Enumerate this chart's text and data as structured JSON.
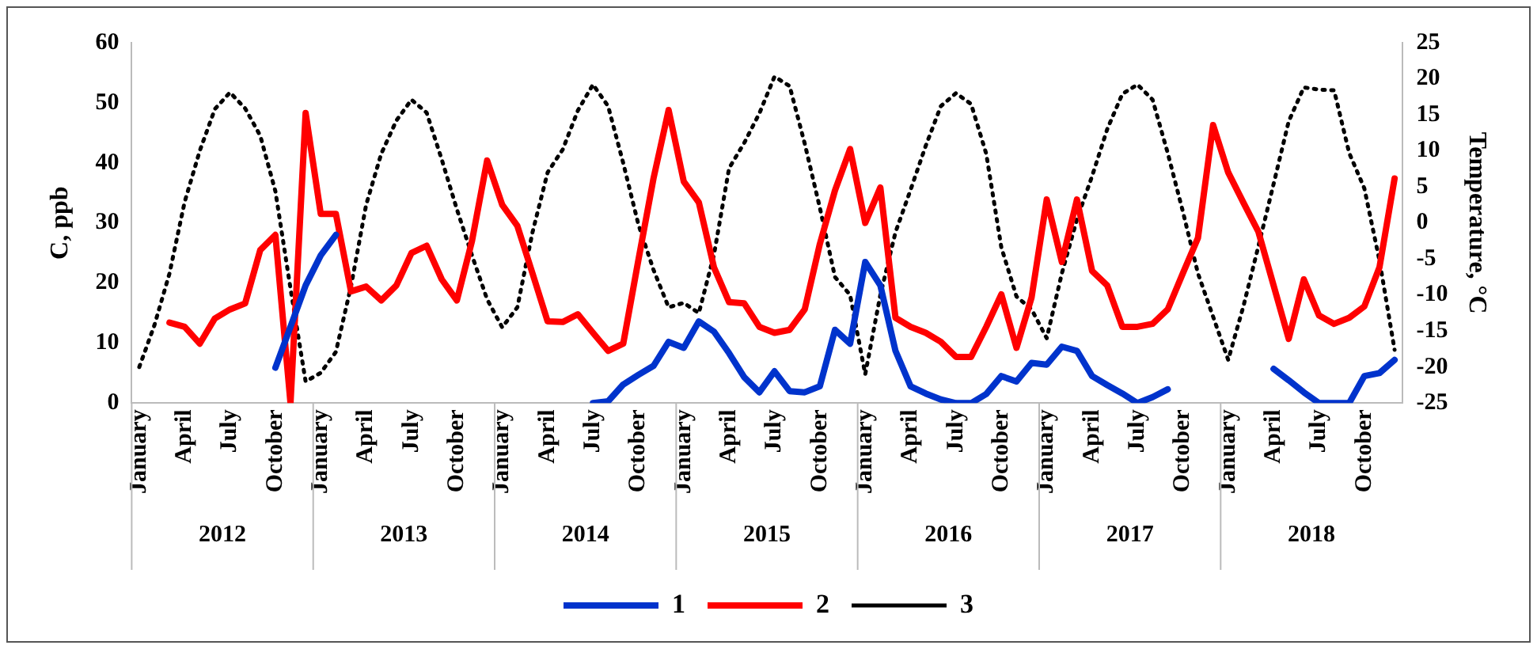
{
  "chart_data": {
    "type": "line",
    "ylabel": "C, ppb",
    "y2label": "Temperature, °C",
    "categories": [
      "January",
      null,
      null,
      "April",
      null,
      null,
      "July",
      null,
      null,
      "October",
      null,
      null,
      "January",
      null,
      null,
      "April",
      null,
      null,
      "July",
      null,
      null,
      "October",
      null,
      null,
      "January",
      null,
      null,
      "April",
      null,
      null,
      "July",
      null,
      null,
      "October",
      null,
      null,
      "January",
      null,
      null,
      "April",
      null,
      null,
      "July",
      null,
      null,
      "October",
      null,
      null,
      "January",
      null,
      null,
      "April",
      null,
      null,
      "July",
      null,
      null,
      "October",
      null,
      null,
      "January",
      null,
      null,
      "April",
      null,
      null,
      "July",
      null,
      null,
      "October",
      null,
      null,
      "January",
      null,
      null,
      "April",
      null,
      null,
      "July",
      null,
      null,
      "October",
      null,
      null
    ],
    "annotations": [
      "2012",
      "2013",
      "2014",
      "2015",
      "2016",
      "2017",
      "2018"
    ],
    "ylim": [
      0,
      60
    ],
    "yticks": [
      0,
      10,
      20,
      30,
      40,
      50,
      60
    ],
    "y2lim": [
      -25,
      25
    ],
    "y2ticks": [
      -25,
      -20,
      -15,
      -10,
      -5,
      0,
      5,
      10,
      15,
      20,
      25
    ],
    "legend": "bottom",
    "marker": "none",
    "series": [
      {
        "name": "1",
        "type": "line",
        "color": "#0033cc",
        "line_style": "solid",
        "values": [
          null,
          null,
          null,
          null,
          null,
          null,
          null,
          null,
          null,
          5.9,
          12.7,
          19.6,
          24.6,
          28,
          null,
          null,
          null,
          null,
          null,
          null,
          null,
          null,
          null,
          null,
          null,
          null,
          null,
          null,
          null,
          null,
          0,
          0.3,
          3.1,
          4.7,
          6.2,
          10.2,
          9.2,
          13.6,
          11.9,
          8.3,
          4.3,
          1.8,
          5.3,
          2,
          1.8,
          2.8,
          12.2,
          9.9,
          23.5,
          19.6,
          8.7,
          2.8,
          1.6,
          0.6,
          0,
          0,
          1.5,
          4.5,
          3.6,
          6.7,
          6.4,
          9.4,
          8.7,
          4.5,
          3,
          1.6,
          0,
          1,
          2.3,
          null,
          null,
          null,
          null,
          null,
          null,
          5.7,
          3.8,
          1.8,
          0,
          0,
          0,
          4.5,
          5,
          7.2
        ]
      },
      {
        "name": "2",
        "type": "line",
        "color": "#ff0000",
        "line_style": "solid",
        "values": [
          null,
          null,
          13.4,
          12.7,
          9.9,
          14.1,
          15.6,
          16.6,
          25.5,
          28,
          0,
          48.3,
          31.5,
          31.5,
          18.6,
          19.4,
          17.1,
          19.6,
          25,
          26.2,
          20.6,
          17.1,
          27,
          40.4,
          33,
          29.5,
          21.6,
          13.6,
          13.5,
          14.8,
          11.7,
          8.7,
          9.9,
          23.8,
          37.4,
          48.8,
          36.9,
          33.4,
          22.6,
          16.8,
          16.6,
          12.7,
          11.7,
          12.2,
          15.6,
          26.5,
          35.4,
          42.3,
          30,
          35.9,
          14.2,
          12.7,
          11.7,
          10.2,
          7.7,
          7.7,
          12.7,
          18.1,
          9.2,
          17.6,
          33.9,
          23.5,
          33.9,
          22,
          19.6,
          12.7,
          12.7,
          13.2,
          15.6,
          21.6,
          27.5,
          46.3,
          38.4,
          33.4,
          28.5,
          19.6,
          10.7,
          20.6,
          14.6,
          13.2,
          14.2,
          16.1,
          22.6,
          37.4
        ]
      },
      {
        "name": "3",
        "type": "line",
        "color": "#000000",
        "line_style": "dotted",
        "axis": "y2",
        "values": [
          -20,
          -14.2,
          -7,
          2.9,
          10,
          15.8,
          18.1,
          15.9,
          12.1,
          4.4,
          -9.1,
          -22,
          -20.8,
          -17.9,
          -8.8,
          2.5,
          9.6,
          14.2,
          17.1,
          15.3,
          8.8,
          1.9,
          -4.5,
          -10.6,
          -14.5,
          -11.7,
          -1.3,
          7,
          10.2,
          15.6,
          19.2,
          16.2,
          8.3,
          -0.2,
          -6.5,
          -11.7,
          -11.1,
          -12.5,
          -4.4,
          7.6,
          11.1,
          15.2,
          20.3,
          19,
          11,
          2.1,
          -7.5,
          -10,
          -21,
          -10,
          -1.3,
          4.6,
          10.7,
          16.2,
          18,
          16.5,
          9.6,
          -3.4,
          -10.2,
          -12,
          -16,
          -7,
          0.5,
          6.5,
          13,
          17.9,
          19.2,
          17.1,
          9.7,
          1.6,
          -7,
          -13,
          -19,
          -11.6,
          -3.2,
          5.4,
          14.1,
          18.8,
          18.5,
          18.4,
          9.7,
          4.8,
          -5.2,
          -17.6
        ]
      }
    ]
  }
}
